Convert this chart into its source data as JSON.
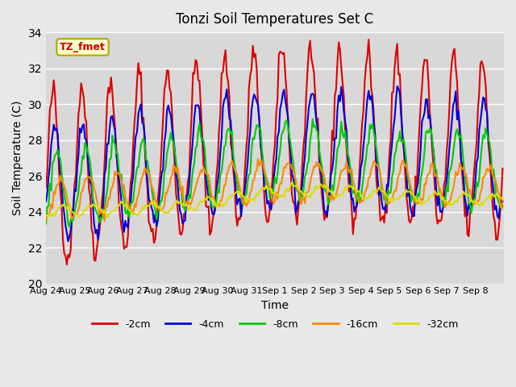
{
  "title": "Tonzi Soil Temperatures Set C",
  "xlabel": "Time",
  "ylabel": "Soil Temperature (C)",
  "ylim": [
    20,
    34
  ],
  "xlim": [
    0,
    352
  ],
  "background_color": "#e8e8e8",
  "plot_bg_color": "#d8d8d8",
  "annotation_text": "TZ_fmet",
  "annotation_bg": "#ffffcc",
  "annotation_border": "#aaaa00",
  "series": {
    "-2cm": {
      "color": "#dd0000",
      "lw": 1.5
    },
    "-4cm": {
      "color": "#0000dd",
      "lw": 1.5
    },
    "-8cm": {
      "color": "#00cc00",
      "lw": 1.5
    },
    "-16cm": {
      "color": "#ff8800",
      "lw": 1.5
    },
    "-32cm": {
      "color": "#dddd00",
      "lw": 1.5
    }
  },
  "xtick_labels": [
    "Aug 24",
    "Aug 25",
    "Aug 26",
    "Aug 27",
    "Aug 28",
    "Aug 29",
    "Aug 30",
    "Aug 31",
    "Sep 1",
    "Sep 2",
    "Sep 3",
    "Sep 4",
    "Sep 5",
    "Sep 6",
    "Sep 7",
    "Sep 8"
  ],
  "xtick_positions": [
    0,
    22,
    44,
    66,
    88,
    110,
    132,
    154,
    176,
    198,
    220,
    242,
    264,
    286,
    308,
    330
  ],
  "ytick_positions": [
    20,
    22,
    24,
    26,
    28,
    30,
    32,
    34
  ],
  "num_points": 352
}
